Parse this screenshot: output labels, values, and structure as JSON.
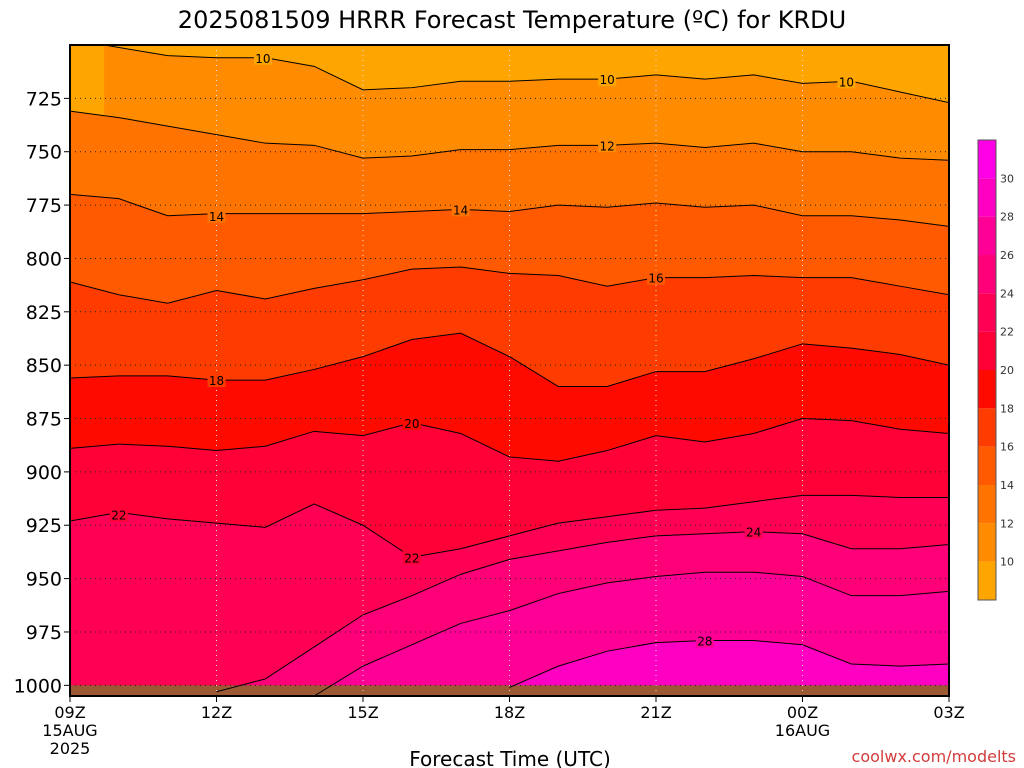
{
  "title": "2025081509 HRRR Forecast Temperature (ºC) for KRDU",
  "xlabel": "Forecast Time (UTC)",
  "credit": "coolwx.com/modelts",
  "chart_data": {
    "type": "filled-contour",
    "title": "2025081509 HRRR Forecast Temperature (ºC) for KRDU",
    "xlabel": "Forecast Time (UTC)",
    "ylabel": "",
    "y_axis_inverted": true,
    "ylim": [
      1005,
      700
    ],
    "xlim": [
      0,
      18
    ],
    "y_ticks": [
      725,
      750,
      775,
      800,
      825,
      850,
      875,
      900,
      925,
      950,
      975,
      1000
    ],
    "x_ticks": [
      {
        "x": 0,
        "label": "09Z",
        "sub1": "15AUG",
        "sub2": "2025"
      },
      {
        "x": 3,
        "label": "12Z",
        "sub1": "",
        "sub2": ""
      },
      {
        "x": 6,
        "label": "15Z",
        "sub1": "",
        "sub2": ""
      },
      {
        "x": 9,
        "label": "18Z",
        "sub1": "",
        "sub2": ""
      },
      {
        "x": 12,
        "label": "21Z",
        "sub1": "",
        "sub2": ""
      },
      {
        "x": 15,
        "label": "00Z",
        "sub1": "16AUG",
        "sub2": ""
      },
      {
        "x": 18,
        "label": "03Z",
        "sub1": "",
        "sub2": ""
      }
    ],
    "grid": true,
    "colorbar": {
      "ticks": [
        10,
        12,
        14,
        16,
        18,
        20,
        22,
        24,
        26,
        28,
        30
      ],
      "colors": [
        "#ffa500",
        "#ff8c00",
        "#ff7300",
        "#ff5a00",
        "#ff3c00",
        "#ff0a00",
        "#ff0037",
        "#ff0055",
        "#ff0078",
        "#ff0096",
        "#ff00c3",
        "#ff00e6"
      ]
    },
    "levels": [
      10,
      12,
      14,
      16,
      18,
      20,
      22,
      24,
      26,
      28,
      30
    ],
    "contours": [
      {
        "value": 10,
        "points": [
          [
            0.7,
            700
          ],
          [
            2,
            705
          ],
          [
            3,
            706
          ],
          [
            4,
            706
          ],
          [
            5,
            710
          ],
          [
            6,
            721
          ],
          [
            7,
            720
          ],
          [
            8,
            717
          ],
          [
            9,
            717
          ],
          [
            10,
            716
          ],
          [
            11,
            716
          ],
          [
            12,
            714
          ],
          [
            13,
            716
          ],
          [
            14,
            714
          ],
          [
            15,
            718
          ],
          [
            16,
            717
          ],
          [
            17,
            722
          ],
          [
            18,
            727
          ]
        ]
      },
      {
        "value": 12,
        "points": [
          [
            0,
            731
          ],
          [
            1,
            734
          ],
          [
            2,
            738
          ],
          [
            3,
            742
          ],
          [
            4,
            746
          ],
          [
            5,
            747
          ],
          [
            6,
            753
          ],
          [
            7,
            752
          ],
          [
            8,
            749
          ],
          [
            9,
            749
          ],
          [
            10,
            747
          ],
          [
            11,
            747
          ],
          [
            12,
            746
          ],
          [
            13,
            748
          ],
          [
            14,
            746
          ],
          [
            15,
            750
          ],
          [
            16,
            750
          ],
          [
            17,
            753
          ],
          [
            18,
            754
          ]
        ]
      },
      {
        "value": 14,
        "points": [
          [
            0,
            770
          ],
          [
            1,
            772
          ],
          [
            2,
            780
          ],
          [
            3,
            779
          ],
          [
            4,
            779
          ],
          [
            5,
            779
          ],
          [
            6,
            779
          ],
          [
            7,
            778
          ],
          [
            8,
            777
          ],
          [
            9,
            778
          ],
          [
            10,
            775
          ],
          [
            11,
            776
          ],
          [
            12,
            774
          ],
          [
            13,
            776
          ],
          [
            14,
            775
          ],
          [
            15,
            780
          ],
          [
            16,
            780
          ],
          [
            17,
            782
          ],
          [
            18,
            785
          ]
        ]
      },
      {
        "value": 16,
        "points": [
          [
            0,
            811
          ],
          [
            1,
            817
          ],
          [
            2,
            821
          ],
          [
            3,
            815
          ],
          [
            4,
            819
          ],
          [
            5,
            814
          ],
          [
            6,
            810
          ],
          [
            7,
            805
          ],
          [
            8,
            804
          ],
          [
            9,
            807
          ],
          [
            10,
            808
          ],
          [
            11,
            813
          ],
          [
            12,
            809
          ],
          [
            13,
            809
          ],
          [
            14,
            808
          ],
          [
            15,
            809
          ],
          [
            16,
            809
          ],
          [
            17,
            813
          ],
          [
            18,
            817
          ]
        ]
      },
      {
        "value": 18,
        "points": [
          [
            0,
            856
          ],
          [
            1,
            855
          ],
          [
            2,
            855
          ],
          [
            3,
            857
          ],
          [
            4,
            857
          ],
          [
            5,
            852
          ],
          [
            6,
            846
          ],
          [
            7,
            838
          ],
          [
            8,
            835
          ],
          [
            9,
            846
          ],
          [
            10,
            860
          ],
          [
            11,
            860
          ],
          [
            12,
            853
          ],
          [
            13,
            853
          ],
          [
            14,
            847
          ],
          [
            15,
            840
          ],
          [
            16,
            842
          ],
          [
            17,
            845
          ],
          [
            18,
            850
          ]
        ]
      },
      {
        "value": 20,
        "points": [
          [
            0,
            889
          ],
          [
            1,
            887
          ],
          [
            2,
            888
          ],
          [
            3,
            890
          ],
          [
            4,
            888
          ],
          [
            5,
            881
          ],
          [
            6,
            883
          ],
          [
            7,
            877
          ],
          [
            8,
            882
          ],
          [
            9,
            893
          ],
          [
            10,
            895
          ],
          [
            11,
            890
          ],
          [
            12,
            883
          ],
          [
            13,
            886
          ],
          [
            14,
            882
          ],
          [
            15,
            875
          ],
          [
            16,
            876
          ],
          [
            17,
            880
          ],
          [
            18,
            882
          ]
        ]
      },
      {
        "value": 22,
        "points": [
          [
            0,
            923
          ],
          [
            1,
            919
          ],
          [
            2,
            922
          ],
          [
            3,
            924
          ],
          [
            4,
            926
          ],
          [
            5,
            915
          ],
          [
            6,
            925
          ],
          [
            7,
            940
          ],
          [
            8,
            936
          ],
          [
            9,
            930
          ],
          [
            10,
            924
          ],
          [
            11,
            921
          ],
          [
            12,
            918
          ],
          [
            13,
            917
          ],
          [
            14,
            914
          ],
          [
            15,
            911
          ],
          [
            16,
            911
          ],
          [
            17,
            912
          ],
          [
            18,
            912
          ]
        ]
      },
      {
        "value": 24,
        "points": [
          [
            3,
            1003
          ],
          [
            4,
            997
          ],
          [
            5,
            982
          ],
          [
            6,
            967
          ],
          [
            7,
            958
          ],
          [
            8,
            948
          ],
          [
            9,
            941
          ],
          [
            10,
            937
          ],
          [
            11,
            933
          ],
          [
            12,
            930
          ],
          [
            13,
            929
          ],
          [
            14,
            928
          ],
          [
            15,
            929
          ],
          [
            16,
            936
          ],
          [
            17,
            936
          ],
          [
            18,
            934
          ]
        ]
      },
      {
        "value": 26,
        "points": [
          [
            5,
            1005
          ],
          [
            6,
            991
          ],
          [
            7,
            981
          ],
          [
            8,
            971
          ],
          [
            9,
            965
          ],
          [
            10,
            957
          ],
          [
            11,
            952
          ],
          [
            12,
            949
          ],
          [
            13,
            947
          ],
          [
            14,
            947
          ],
          [
            15,
            949
          ],
          [
            16,
            958
          ],
          [
            17,
            958
          ],
          [
            18,
            956
          ]
        ]
      },
      {
        "value": 28,
        "points": [
          [
            9,
            1001
          ],
          [
            10,
            991
          ],
          [
            11,
            984
          ],
          [
            12,
            980
          ],
          [
            13,
            979
          ],
          [
            14,
            979
          ],
          [
            15,
            981
          ],
          [
            16,
            990
          ],
          [
            17,
            991
          ],
          [
            18,
            990
          ]
        ]
      }
    ],
    "contour_labels": [
      {
        "value": 10,
        "x": 3.95,
        "y": 706
      },
      {
        "value": 10,
        "x": 11.0,
        "y": 716
      },
      {
        "value": 10,
        "x": 15.9,
        "y": 717
      },
      {
        "value": 12,
        "x": 11.0,
        "y": 747
      },
      {
        "value": 14,
        "x": 3.0,
        "y": 780
      },
      {
        "value": 14,
        "x": 8.0,
        "y": 777
      },
      {
        "value": 16,
        "x": 12.0,
        "y": 809
      },
      {
        "value": 18,
        "x": 3.0,
        "y": 857
      },
      {
        "value": 20,
        "x": 7.0,
        "y": 877
      },
      {
        "value": 22,
        "x": 1.0,
        "y": 920
      },
      {
        "value": 22,
        "x": 7.0,
        "y": 940
      },
      {
        "value": 24,
        "x": 14.0,
        "y": 928
      },
      {
        "value": 28,
        "x": 13.0,
        "y": 979
      }
    ],
    "surface": {
      "top": 1000,
      "color": "#9c5a34"
    }
  }
}
